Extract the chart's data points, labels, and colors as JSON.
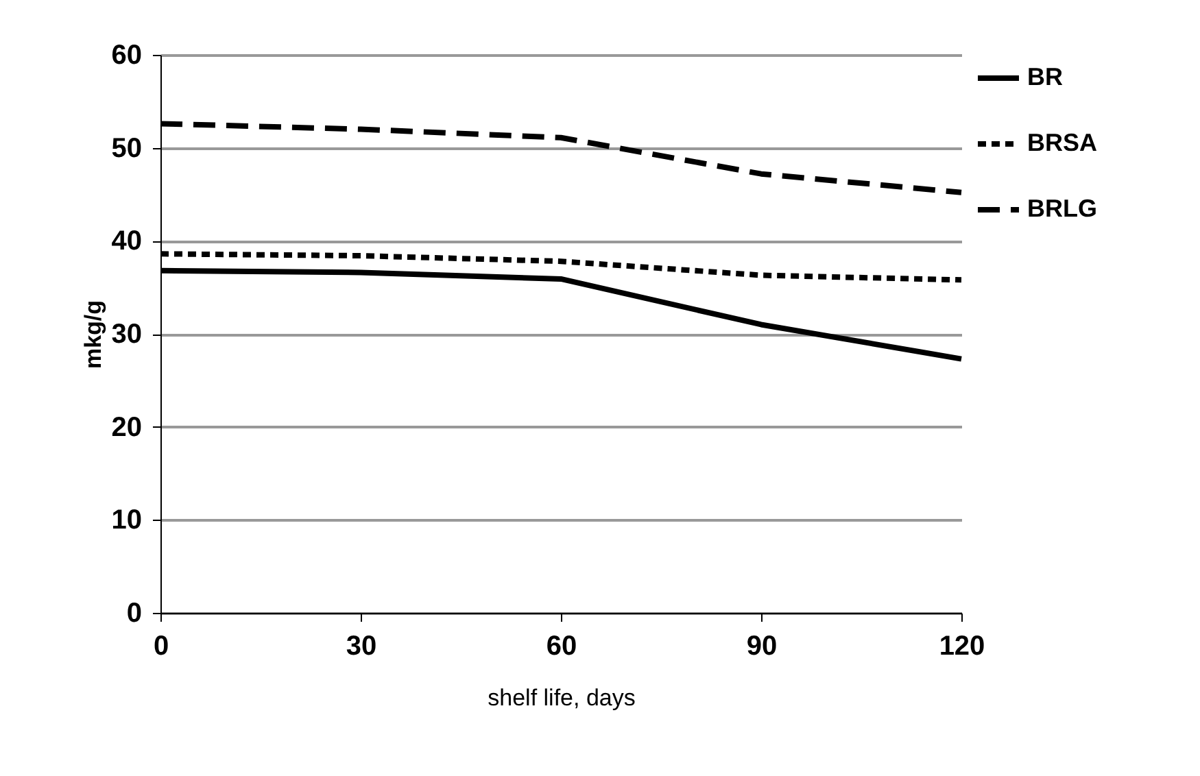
{
  "chart_data": {
    "type": "line",
    "xlabel": "shelf life, days",
    "ylabel": "mkg/g",
    "x": [
      0,
      30,
      60,
      90,
      120
    ],
    "xlim": [
      0,
      120
    ],
    "xticks": [
      0,
      30,
      60,
      90,
      120
    ],
    "ylim": [
      0,
      60
    ],
    "yticks": [
      0,
      10,
      20,
      30,
      40,
      50,
      60
    ],
    "grid": "y",
    "legend": "right",
    "series": [
      {
        "name": "BR",
        "color": "#000000",
        "line_style": "solid",
        "values": [
          36.8,
          36.6,
          35.9,
          31.0,
          27.3
        ]
      },
      {
        "name": "BRSA",
        "color": "#000000",
        "line_style": "dotted",
        "values": [
          38.6,
          38.4,
          37.8,
          36.3,
          35.8
        ]
      },
      {
        "name": "BRLG",
        "color": "#000000",
        "line_style": "dashed",
        "values": [
          52.6,
          52.0,
          51.1,
          47.2,
          45.2
        ]
      }
    ]
  }
}
